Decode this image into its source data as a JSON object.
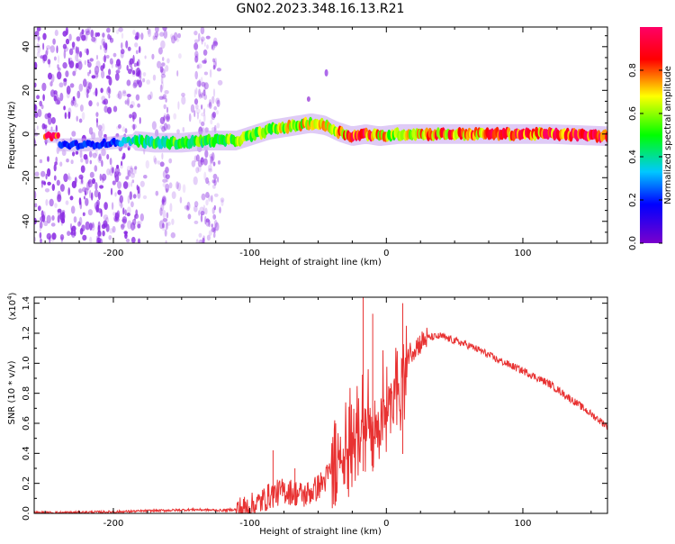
{
  "title": "GN02.2023.348.16.13.R21",
  "chart_data": [
    {
      "type": "heatmap",
      "xlabel": "Height of straight line (km)",
      "ylabel": "Frequency (Hz)",
      "xlim": [
        -258,
        162
      ],
      "ylim": [
        -50,
        49
      ],
      "xticks": [
        -200,
        -100,
        0,
        100
      ],
      "yticks": [
        -40,
        -20,
        0,
        20,
        40
      ],
      "colorbar": {
        "label": "Normalized spectral amplitude",
        "range": [
          0.0,
          1.0
        ],
        "ticks": [
          0.0,
          0.2,
          0.4,
          0.6,
          0.8
        ],
        "colormap": [
          "#7a00cc",
          "#0000ff",
          "#00c8ff",
          "#00ff00",
          "#ffff00",
          "#ff0000",
          "#ff0066"
        ]
      },
      "ridge": {
        "x": [
          -240,
          -220,
          -200,
          -185,
          -170,
          -150,
          -130,
          -110,
          -95,
          -85,
          -75,
          -65,
          -55,
          -45,
          -35,
          -25,
          -15,
          -5,
          10,
          40,
          80,
          120,
          162
        ],
        "center_freq": [
          -5,
          -5,
          -4,
          -3,
          -4,
          -4,
          -3,
          -3,
          0,
          2,
          3,
          4,
          5,
          4,
          1,
          -1,
          0,
          -1,
          0,
          0,
          0,
          0,
          -1
        ],
        "amplitude": [
          0.2,
          0.2,
          0.2,
          0.4,
          0.45,
          0.5,
          0.5,
          0.55,
          0.6,
          0.6,
          0.6,
          0.65,
          0.7,
          0.7,
          0.75,
          0.8,
          0.9,
          0.7,
          0.6,
          0.75,
          0.8,
          0.85,
          0.95
        ]
      }
    },
    {
      "type": "line",
      "xlabel": "Height of straight line (km)",
      "ylabel": "SNR (10 * v/v)",
      "scale_label": "(x10",
      "scale_exp": "4",
      "color": "#e83232",
      "xlim": [
        -258,
        162
      ],
      "ylim": [
        0,
        1.44
      ],
      "xticks": [
        -200,
        -100,
        0,
        100
      ],
      "yticks": [
        0.0,
        0.2,
        0.4,
        0.6,
        0.8,
        1.0,
        1.2,
        1.4
      ],
      "x": [
        -258,
        -240,
        -220,
        -200,
        -180,
        -160,
        -140,
        -120,
        -105,
        -95,
        -85,
        -75,
        -68,
        -60,
        -52,
        -45,
        -40,
        -35,
        -30,
        -25,
        -20,
        -15,
        -10,
        -5,
        0,
        5,
        10,
        15,
        20,
        30,
        40,
        50,
        60,
        70,
        80,
        100,
        120,
        140,
        162
      ],
      "y": [
        0.005,
        0.005,
        0.008,
        0.01,
        0.015,
        0.02,
        0.025,
        0.02,
        0.03,
        0.06,
        0.12,
        0.15,
        0.14,
        0.12,
        0.16,
        0.22,
        0.3,
        0.42,
        0.52,
        0.6,
        0.68,
        0.72,
        0.7,
        0.8,
        0.85,
        0.9,
        0.95,
        1.05,
        1.1,
        1.17,
        1.18,
        1.15,
        1.12,
        1.08,
        1.03,
        0.95,
        0.86,
        0.73,
        0.58
      ],
      "peaks": [
        {
          "x": -83,
          "y": 0.42
        },
        {
          "x": -67,
          "y": 0.3
        },
        {
          "x": -17,
          "y": 1.44
        },
        {
          "x": -10,
          "y": 1.33
        },
        {
          "x": 12,
          "y": 1.4
        }
      ]
    }
  ]
}
